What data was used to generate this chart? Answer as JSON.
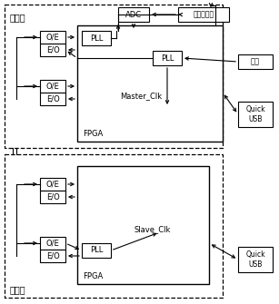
{
  "fig_width": 3.07,
  "fig_height": 3.35,
  "dpi": 100,
  "bg_color": "#ffffff",
  "lw": 0.8,
  "fs": 6.0,
  "fs_label": 7.0,
  "master_label": "主节点",
  "slave_label": "从节点",
  "adc_label": "ADC",
  "phase_label": "相位鉴别器",
  "clock_label": "时钟",
  "quickusb_label": "Quick\nUSB",
  "fpga_label": "FPGA",
  "slave_fpga_label": "FPGA",
  "master_clk_label": "Master_Clk",
  "slave_clk_label": "Slave_Clk",
  "pll_label": "PLL",
  "oe_label": "O/E",
  "eo_label": "E/O"
}
